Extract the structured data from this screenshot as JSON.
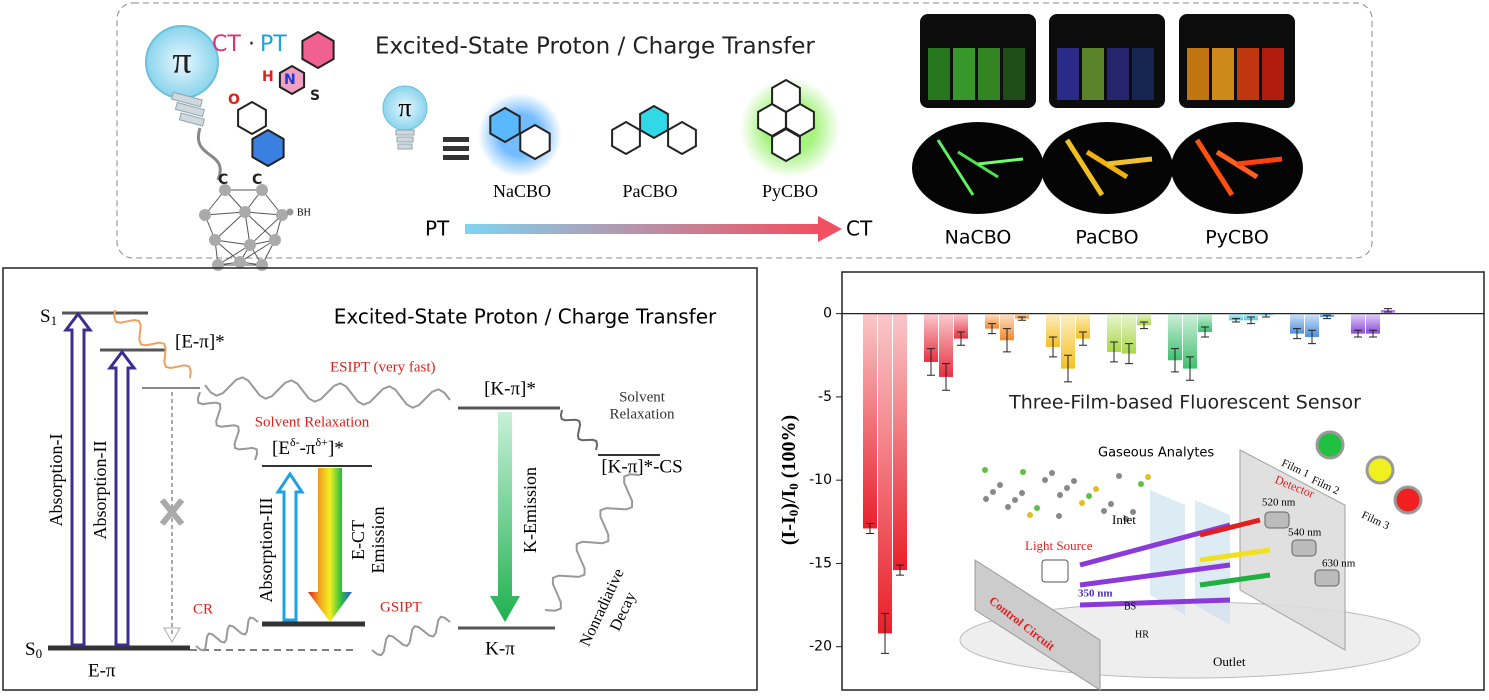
{
  "toc": {
    "title": "Excited-State Proton / Charge Transfer",
    "ct": "CT",
    "dot": "·",
    "pt": "PT",
    "pi": "π",
    "small_pi": "π",
    "atoms": [
      "H",
      "N",
      "O",
      "S",
      "C",
      "C"
    ],
    "bh": "BH",
    "compounds": [
      "NaCBO",
      "PaCBO",
      "PyCBO"
    ],
    "axis_start": "PT",
    "axis_end": "CT",
    "photo_labels": [
      "NaCBO",
      "PaCBO",
      "PyCBO"
    ]
  },
  "diagram": {
    "title": "Excited-State Proton / Charge Transfer",
    "s1": [
      "S",
      "1"
    ],
    "s0": [
      "S",
      "0"
    ],
    "e_pi_star": "[E-π]*",
    "esipt": "ESIPT (very fast)",
    "k_pi_star": "[K-π]*",
    "solvent_relax_gray": [
      "Solvent",
      "Relaxation"
    ],
    "solvent_relax_red": "Solvent Relaxation",
    "ct_state": [
      "[E",
      "δ-",
      "-π",
      "δ+",
      "]*"
    ],
    "k_cs": "[K-π]*-CS",
    "abs1": "Absorption-I",
    "abs2": "Absorption-II",
    "abs3": "Absorption-III",
    "ect": [
      "E-CT",
      "Emission"
    ],
    "kem": "K-Emission",
    "nonrad": [
      "Nonradiative",
      "Decay"
    ],
    "cr": "CR",
    "gsipt": "GSIPT",
    "e_pi": "E-π",
    "k_pi": "K-π"
  },
  "chart_data": {
    "type": "bar",
    "title": "Three-Film-based Fluorescent Sensor",
    "ylabel": [
      "(I-I",
      "0",
      ")/I",
      "0",
      " (100%)"
    ],
    "categories": [
      null,
      null,
      null,
      null,
      null,
      null,
      null,
      null,
      null
    ],
    "colors": [
      "#e8202a",
      "#e83040",
      "#f08a30",
      "#f5c020",
      "#a8d84a",
      "#40c070",
      "#50c8e0",
      "#4a90e0",
      "#8a4ad8"
    ],
    "series": [
      {
        "values": [
          -12.9,
          -2.9,
          -0.9,
          -2.0,
          -2.3,
          -2.8,
          -0.4,
          -1.2,
          -1.2
        ],
        "errors": [
          0.3,
          0.8,
          0.3,
          0.6,
          0.6,
          0.7,
          0.1,
          0.3,
          0.2
        ]
      },
      {
        "values": [
          -19.2,
          -3.8,
          -1.6,
          -3.3,
          -2.4,
          -3.3,
          -0.4,
          -1.4,
          -1.2
        ],
        "errors": [
          1.2,
          0.8,
          0.7,
          0.8,
          0.6,
          0.7,
          0.2,
          0.4,
          0.2
        ]
      },
      {
        "values": [
          -15.4,
          -1.5,
          -0.3,
          -1.5,
          -0.7,
          -1.1,
          -0.1,
          -0.2,
          0.2
        ],
        "errors": [
          0.3,
          0.4,
          0.1,
          0.4,
          0.2,
          0.3,
          0.1,
          0.1,
          0.1
        ]
      }
    ],
    "ylim": [
      -22.6,
      2.5
    ],
    "yticks": [
      0,
      -5,
      -10,
      -15,
      -20
    ]
  },
  "sensor_inset": {
    "gaseous": "Gaseous Analytes",
    "detector": "Detector",
    "films": [
      "Film 1",
      "Film 2",
      "Film 3"
    ],
    "wavelengths": [
      "520 nm",
      "540 nm",
      "630 nm"
    ],
    "inlet": "Inlet",
    "light_source": "Light Source",
    "excitation": "350 nm",
    "bs": "BS",
    "hr": "HR",
    "outlet": "Outlet",
    "control": "Control Circuit"
  }
}
